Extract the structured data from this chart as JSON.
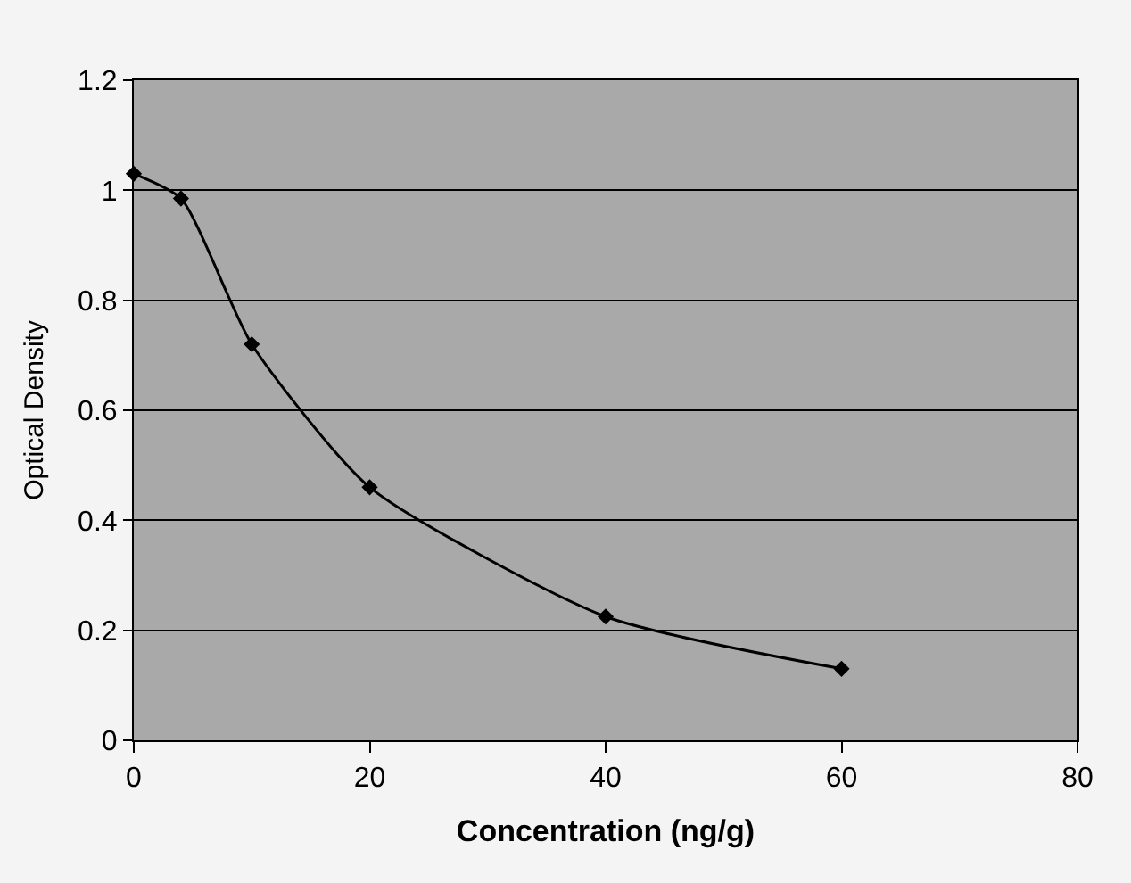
{
  "chart_data": {
    "type": "line",
    "xlabel": "Concentration (ng/g)",
    "ylabel": "Optical Density",
    "x": [
      0,
      4,
      10,
      20,
      40,
      60
    ],
    "series": [
      {
        "color": "#000000",
        "values": [
          1.03,
          0.985,
          0.72,
          0.46,
          0.225,
          0.13
        ]
      }
    ],
    "xlim": [
      0,
      80
    ],
    "xticks": [
      0,
      20,
      40,
      60,
      80
    ],
    "ylim": [
      0,
      1.2
    ],
    "yticks": [
      0,
      0.2,
      0.4,
      0.6,
      0.8,
      1,
      1.2
    ],
    "grid": "y",
    "marker": "diamond",
    "line_style": "solid",
    "legend": false
  }
}
